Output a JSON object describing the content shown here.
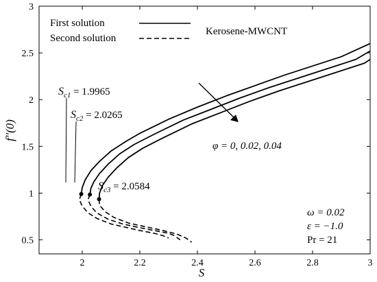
{
  "chart_data": {
    "type": "line",
    "xlabel": "S",
    "ylabel": "f''(0)",
    "xlim": [
      1.85,
      3
    ],
    "ylim": [
      0.35,
      3
    ],
    "xticks": [
      "2",
      "2.2",
      "2.4",
      "2.6",
      "2.8",
      "3"
    ],
    "yticks": [
      "0.5",
      "1",
      "1.5",
      "2",
      "2.5",
      "3"
    ],
    "legend": {
      "placement": "top-left",
      "entries": [
        {
          "label": "First solution",
          "style": "solid"
        },
        {
          "label": "Second solution",
          "style": "dashed"
        }
      ]
    },
    "fluid_label": "Kerosene-MWCNT",
    "parameter_label": "φ = 0, 0.02, 0.04",
    "params": [
      "ω = 0.02",
      "ε = −1.0",
      "Pr = 21"
    ],
    "critical_points": [
      {
        "label": "Sc1 = 1.9965",
        "sub": "c1",
        "value": "1.9965",
        "s": 1.9965,
        "f": 0.99
      },
      {
        "label": "Sc2 = 2.0265",
        "sub": "c2",
        "value": "2.0265",
        "s": 2.0265,
        "f": 0.985
      },
      {
        "label": "Sc3 = 2.0584",
        "sub": "c3",
        "value": "2.0584",
        "s": 2.0584,
        "f": 0.935
      }
    ],
    "series": [
      {
        "phi": 0,
        "first": [
          [
            1.9965,
            0.99
          ],
          [
            2.0,
            1.06
          ],
          [
            2.01,
            1.14
          ],
          [
            2.03,
            1.24
          ],
          [
            2.06,
            1.34
          ],
          [
            2.1,
            1.45
          ],
          [
            2.15,
            1.55
          ],
          [
            2.2,
            1.64
          ],
          [
            2.3,
            1.79
          ],
          [
            2.4,
            1.92
          ],
          [
            2.5,
            2.04
          ],
          [
            2.6,
            2.15
          ],
          [
            2.7,
            2.26
          ],
          [
            2.8,
            2.36
          ],
          [
            2.9,
            2.46
          ],
          [
            3.0,
            2.6
          ]
        ],
        "second": [
          [
            1.9965,
            0.99
          ],
          [
            1.99,
            0.93
          ],
          [
            2.0,
            0.86
          ],
          [
            2.02,
            0.79
          ],
          [
            2.05,
            0.73
          ],
          [
            2.1,
            0.67
          ],
          [
            2.15,
            0.635
          ],
          [
            2.2,
            0.6
          ],
          [
            2.25,
            0.57
          ],
          [
            2.28,
            0.545
          ],
          [
            2.3,
            0.52
          ]
        ]
      },
      {
        "phi": 0.02,
        "first": [
          [
            2.0265,
            0.985
          ],
          [
            2.03,
            1.05
          ],
          [
            2.04,
            1.12
          ],
          [
            2.06,
            1.21
          ],
          [
            2.09,
            1.31
          ],
          [
            2.13,
            1.42
          ],
          [
            2.18,
            1.52
          ],
          [
            2.25,
            1.63
          ],
          [
            2.35,
            1.78
          ],
          [
            2.45,
            1.9
          ],
          [
            2.55,
            2.02
          ],
          [
            2.65,
            2.13
          ],
          [
            2.75,
            2.23
          ],
          [
            2.85,
            2.33
          ],
          [
            2.95,
            2.43
          ],
          [
            3.0,
            2.52
          ]
        ],
        "second": [
          [
            2.0265,
            0.985
          ],
          [
            2.02,
            0.93
          ],
          [
            2.03,
            0.86
          ],
          [
            2.05,
            0.79
          ],
          [
            2.09,
            0.72
          ],
          [
            2.14,
            0.67
          ],
          [
            2.2,
            0.63
          ],
          [
            2.25,
            0.6
          ],
          [
            2.3,
            0.57
          ],
          [
            2.32,
            0.545
          ],
          [
            2.34,
            0.5
          ]
        ]
      },
      {
        "phi": 0.04,
        "first": [
          [
            2.0584,
            0.935
          ],
          [
            2.06,
            1.0
          ],
          [
            2.07,
            1.08
          ],
          [
            2.09,
            1.17
          ],
          [
            2.12,
            1.27
          ],
          [
            2.16,
            1.38
          ],
          [
            2.21,
            1.48
          ],
          [
            2.28,
            1.59
          ],
          [
            2.38,
            1.74
          ],
          [
            2.48,
            1.86
          ],
          [
            2.58,
            1.98
          ],
          [
            2.68,
            2.09
          ],
          [
            2.78,
            2.19
          ],
          [
            2.88,
            2.29
          ],
          [
            2.98,
            2.39
          ],
          [
            3.0,
            2.43
          ]
        ],
        "second": [
          [
            2.0584,
            0.935
          ],
          [
            2.06,
            0.87
          ],
          [
            2.08,
            0.8
          ],
          [
            2.11,
            0.74
          ],
          [
            2.16,
            0.68
          ],
          [
            2.22,
            0.64
          ],
          [
            2.28,
            0.6
          ],
          [
            2.33,
            0.56
          ],
          [
            2.36,
            0.52
          ],
          [
            2.38,
            0.475
          ]
        ]
      }
    ]
  }
}
